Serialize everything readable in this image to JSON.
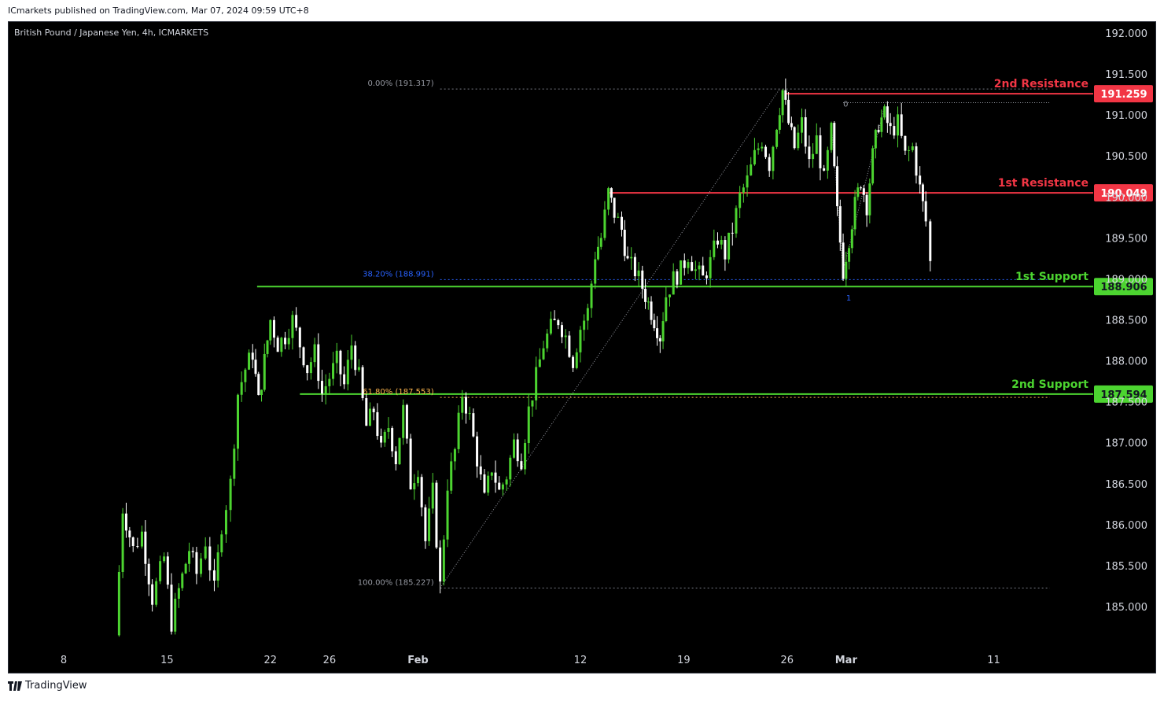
{
  "header": {
    "publisher": "ICmarkets published on TradingView.com, Mar 07, 2024 09:59 UTC+8"
  },
  "symbol_title": "British Pound / Japanese Yen, 4h, ICMARKETS",
  "footer": {
    "brand": "TradingView"
  },
  "colors": {
    "resistance": "#f23645",
    "support": "#4cd430",
    "up": "#4cd430",
    "down": "#ffffff",
    "background": "#000000"
  },
  "chart_data": {
    "type": "candlestick",
    "y_axis": {
      "min": 184.7,
      "max": 192.2,
      "ticks": [
        "192.000",
        "191.500",
        "191.000",
        "190.500",
        "190.000",
        "189.500",
        "189.000",
        "188.500",
        "188.000",
        "187.500",
        "187.000",
        "186.500",
        "186.000",
        "185.500",
        "185.000"
      ]
    },
    "x_axis": {
      "ticks": [
        {
          "label": "8",
          "day": 0
        },
        {
          "label": "15",
          "day": 7
        },
        {
          "label": "22",
          "day": 14
        },
        {
          "label": "26",
          "day": 18
        },
        {
          "label": "Feb",
          "day": 24
        },
        {
          "label": "12",
          "day": 35
        },
        {
          "label": "19",
          "day": 42
        },
        {
          "label": "26",
          "day": 49
        },
        {
          "label": "Mar",
          "day": 53
        },
        {
          "label": "11",
          "day": 63
        }
      ]
    },
    "levels": [
      {
        "name": "2nd Resistance",
        "value": 191.259,
        "label": "191.259",
        "kind": "resistance",
        "start_day": 48.9
      },
      {
        "name": "1st Resistance",
        "value": 190.049,
        "label": "190.049",
        "kind": "resistance",
        "start_day": 36.9
      },
      {
        "name": "1st Support",
        "value": 188.906,
        "label": "188.906",
        "kind": "support",
        "start_day": 13.1
      },
      {
        "name": "2nd Support",
        "value": 187.594,
        "label": "187.594",
        "kind": "support",
        "start_day": 16.0
      }
    ],
    "fibonacci": [
      {
        "label": "0.00% (191.317)",
        "value": 191.317
      },
      {
        "label": "38.20% (188.991)",
        "value": 188.991
      },
      {
        "label": "61.80% (187.553)",
        "value": 187.553
      },
      {
        "label": "100.00% (185.227)",
        "value": 185.227
      }
    ],
    "fib_anchor": {
      "low": {
        "day": 25.5,
        "value": 185.227
      },
      "high": {
        "day": 48.5,
        "value": 191.317
      },
      "end_day": 66.8
    },
    "retrace_markers": [
      {
        "label": "0",
        "day": 52.7,
        "value": 191.1
      },
      {
        "label": "1",
        "day": 52.9,
        "value": 188.85
      }
    ],
    "price_path": [
      [
        3.5,
        184.65
      ],
      [
        4.0,
        186.2
      ],
      [
        4.7,
        185.7
      ],
      [
        5.3,
        185.9
      ],
      [
        6.0,
        185.1
      ],
      [
        6.8,
        185.6
      ],
      [
        7.3,
        184.8
      ],
      [
        7.8,
        185.2
      ],
      [
        8.5,
        185.7
      ],
      [
        9.0,
        185.4
      ],
      [
        9.6,
        185.8
      ],
      [
        10.2,
        185.2
      ],
      [
        10.7,
        186.0
      ],
      [
        11.3,
        186.5
      ],
      [
        11.8,
        187.6
      ],
      [
        12.3,
        187.9
      ],
      [
        12.8,
        188.1
      ],
      [
        13.2,
        187.5
      ],
      [
        13.6,
        188.0
      ],
      [
        14.0,
        188.5
      ],
      [
        14.5,
        188.2
      ],
      [
        15.0,
        188.3
      ],
      [
        15.5,
        188.5
      ],
      [
        16.0,
        188.2
      ],
      [
        16.5,
        187.9
      ],
      [
        17.0,
        188.1
      ],
      [
        17.5,
        187.6
      ],
      [
        18.0,
        187.8
      ],
      [
        18.5,
        188.0
      ],
      [
        19.0,
        187.7
      ],
      [
        19.5,
        188.2
      ],
      [
        20.0,
        187.8
      ],
      [
        20.5,
        187.2
      ],
      [
        21.0,
        187.4
      ],
      [
        21.5,
        186.9
      ],
      [
        22.0,
        187.2
      ],
      [
        22.5,
        186.8
      ],
      [
        23.0,
        187.4
      ],
      [
        23.5,
        186.5
      ],
      [
        24.0,
        186.7
      ],
      [
        24.5,
        185.8
      ],
      [
        25.0,
        186.4
      ],
      [
        25.5,
        185.25
      ],
      [
        26.0,
        186.5
      ],
      [
        26.5,
        186.9
      ],
      [
        27.0,
        187.6
      ],
      [
        27.5,
        187.3
      ],
      [
        28.0,
        186.8
      ],
      [
        28.5,
        186.3
      ],
      [
        29.0,
        186.7
      ],
      [
        29.5,
        186.4
      ],
      [
        30.0,
        186.6
      ],
      [
        30.5,
        187.0
      ],
      [
        31.0,
        186.8
      ],
      [
        31.5,
        187.4
      ],
      [
        32.0,
        187.8
      ],
      [
        32.5,
        188.2
      ],
      [
        33.0,
        188.4
      ],
      [
        33.5,
        188.5
      ],
      [
        34.0,
        188.3
      ],
      [
        34.5,
        188.0
      ],
      [
        35.0,
        188.4
      ],
      [
        35.5,
        188.6
      ],
      [
        36.0,
        189.3
      ],
      [
        36.4,
        189.5
      ],
      [
        36.9,
        190.05
      ],
      [
        37.3,
        189.8
      ],
      [
        37.8,
        189.6
      ],
      [
        38.2,
        189.2
      ],
      [
        38.7,
        189.1
      ],
      [
        39.2,
        188.9
      ],
      [
        39.6,
        188.7
      ],
      [
        40.0,
        188.5
      ],
      [
        40.4,
        188.3
      ],
      [
        40.8,
        188.8
      ],
      [
        41.3,
        189.0
      ],
      [
        41.8,
        189.1
      ],
      [
        42.3,
        189.3
      ],
      [
        42.8,
        189.1
      ],
      [
        43.3,
        189.0
      ],
      [
        43.8,
        189.2
      ],
      [
        44.3,
        189.5
      ],
      [
        44.8,
        189.3
      ],
      [
        45.3,
        189.6
      ],
      [
        45.8,
        190.0
      ],
      [
        46.3,
        190.2
      ],
      [
        46.8,
        190.5
      ],
      [
        47.3,
        190.7
      ],
      [
        47.8,
        190.4
      ],
      [
        48.3,
        190.9
      ],
      [
        48.7,
        191.3
      ],
      [
        49.1,
        190.9
      ],
      [
        49.5,
        190.6
      ],
      [
        50.0,
        190.9
      ],
      [
        50.5,
        190.4
      ],
      [
        51.0,
        190.7
      ],
      [
        51.5,
        190.2
      ],
      [
        52.0,
        190.8
      ],
      [
        52.4,
        189.8
      ],
      [
        52.8,
        189.1
      ],
      [
        53.2,
        189.5
      ],
      [
        53.6,
        189.9
      ],
      [
        54.0,
        190.2
      ],
      [
        54.4,
        189.9
      ],
      [
        54.8,
        190.5
      ],
      [
        55.2,
        190.9
      ],
      [
        55.6,
        191.0
      ],
      [
        56.0,
        190.8
      ],
      [
        56.5,
        190.9
      ],
      [
        57.0,
        190.5
      ],
      [
        57.5,
        190.6
      ],
      [
        58.0,
        190.1
      ],
      [
        58.4,
        189.7
      ],
      [
        58.7,
        189.2
      ]
    ]
  }
}
